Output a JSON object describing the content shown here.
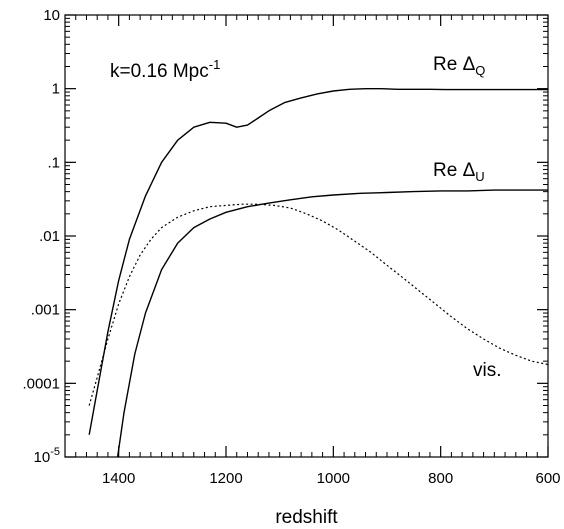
{
  "chart_data": {
    "type": "line",
    "xlabel": "redshift",
    "ylabel": "",
    "x_axis_reversed": true,
    "xlim": [
      1500,
      600
    ],
    "ylim": [
      1e-05,
      10
    ],
    "y_scale": "log",
    "grid": false,
    "x_ticks": [
      1400,
      1200,
      1000,
      800,
      600
    ],
    "x_tick_labels": [
      "1400",
      "1200",
      "1000",
      "800",
      "600"
    ],
    "y_ticks": [
      1e-05,
      0.0001,
      0.001,
      0.01,
      0.1,
      1,
      10
    ],
    "y_tick_labels": [
      {
        "base": "10",
        "sup": "-5"
      },
      {
        "base": ".0001",
        "sup": ""
      },
      {
        "base": ".001",
        "sup": ""
      },
      {
        "base": ".01",
        "sup": ""
      },
      {
        "base": ".1",
        "sup": ""
      },
      {
        "base": "1",
        "sup": ""
      },
      {
        "base": "10",
        "sup": ""
      }
    ],
    "annotation": {
      "text": "k=0.16 Mpc",
      "sup": "-1"
    },
    "series": [
      {
        "label": {
          "text": "Re Δ",
          "sub": "Q"
        },
        "style": "solid",
        "points": [
          [
            1455,
            2e-05
          ],
          [
            1440,
            8e-05
          ],
          [
            1420,
            0.0005
          ],
          [
            1400,
            0.0025
          ],
          [
            1380,
            0.009
          ],
          [
            1350,
            0.035
          ],
          [
            1320,
            0.1
          ],
          [
            1290,
            0.2
          ],
          [
            1260,
            0.3
          ],
          [
            1230,
            0.35
          ],
          [
            1200,
            0.34
          ],
          [
            1180,
            0.3
          ],
          [
            1160,
            0.32
          ],
          [
            1140,
            0.4
          ],
          [
            1120,
            0.5
          ],
          [
            1090,
            0.65
          ],
          [
            1060,
            0.75
          ],
          [
            1030,
            0.85
          ],
          [
            1000,
            0.93
          ],
          [
            970,
            0.98
          ],
          [
            940,
            1.0
          ],
          [
            910,
            1.0
          ],
          [
            880,
            0.98
          ],
          [
            850,
            0.98
          ],
          [
            820,
            0.98
          ],
          [
            790,
            0.97
          ],
          [
            760,
            0.97
          ],
          [
            730,
            0.97
          ],
          [
            700,
            0.97
          ],
          [
            670,
            0.97
          ],
          [
            640,
            0.97
          ],
          [
            600,
            0.97
          ]
        ]
      },
      {
        "label": {
          "text": "Re Δ",
          "sub": "U"
        },
        "style": "solid",
        "points": [
          [
            1402,
            1e-05
          ],
          [
            1390,
            4e-05
          ],
          [
            1370,
            0.00025
          ],
          [
            1350,
            0.0009
          ],
          [
            1320,
            0.0035
          ],
          [
            1290,
            0.008
          ],
          [
            1260,
            0.013
          ],
          [
            1230,
            0.017
          ],
          [
            1200,
            0.021
          ],
          [
            1160,
            0.025
          ],
          [
            1120,
            0.028
          ],
          [
            1080,
            0.031
          ],
          [
            1040,
            0.034
          ],
          [
            1000,
            0.036
          ],
          [
            950,
            0.038
          ],
          [
            900,
            0.039
          ],
          [
            850,
            0.04
          ],
          [
            800,
            0.041
          ],
          [
            750,
            0.041
          ],
          [
            700,
            0.042
          ],
          [
            650,
            0.042
          ],
          [
            600,
            0.042
          ]
        ]
      },
      {
        "label": {
          "text": "vis.",
          "sub": ""
        },
        "style": "dotted",
        "points": [
          [
            1455,
            5e-05
          ],
          [
            1440,
            0.00012
          ],
          [
            1420,
            0.0004
          ],
          [
            1400,
            0.0012
          ],
          [
            1380,
            0.0028
          ],
          [
            1360,
            0.0055
          ],
          [
            1340,
            0.009
          ],
          [
            1320,
            0.013
          ],
          [
            1290,
            0.018
          ],
          [
            1260,
            0.022
          ],
          [
            1230,
            0.025
          ],
          [
            1200,
            0.026
          ],
          [
            1170,
            0.027
          ],
          [
            1140,
            0.027
          ],
          [
            1110,
            0.026
          ],
          [
            1080,
            0.024
          ],
          [
            1050,
            0.02
          ],
          [
            1020,
            0.016
          ],
          [
            990,
            0.012
          ],
          [
            960,
            0.0085
          ],
          [
            930,
            0.006
          ],
          [
            900,
            0.004
          ],
          [
            870,
            0.0027
          ],
          [
            840,
            0.0018
          ],
          [
            810,
            0.0012
          ],
          [
            780,
            0.0008
          ],
          [
            750,
            0.00055
          ],
          [
            720,
            0.0004
          ],
          [
            690,
            0.0003
          ],
          [
            660,
            0.00024
          ],
          [
            630,
            0.0002
          ],
          [
            600,
            0.00018
          ]
        ]
      }
    ]
  }
}
